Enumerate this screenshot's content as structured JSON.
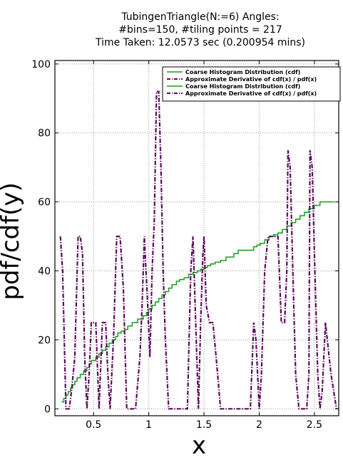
{
  "chart_data": {
    "type": "line",
    "title_lines": [
      "TubingenTriangle(N:=6) Angles:",
      "#bins=150, #tiling points = 217",
      "Time Taken: 12.0573 sec (0.200954 mins)"
    ],
    "xlabel": "x",
    "ylabel": "pdf/cdf(y)",
    "xlim": [
      0.15,
      2.72
    ],
    "ylim": [
      -2,
      101
    ],
    "x_ticks": [
      0.5,
      1,
      1.5,
      2,
      2.5
    ],
    "x_tick_labels": [
      "0.5",
      "1",
      "1.5",
      "2",
      "2.5"
    ],
    "y_ticks": [
      0,
      20,
      40,
      60,
      80,
      100
    ],
    "y_tick_labels": [
      "0",
      "20",
      "40",
      "60",
      "80",
      "100"
    ],
    "grid": true,
    "legend_position": "top-right",
    "legend": [
      "Coarse Histogram Distribution (cdf)",
      "Approximate Derivative of cdf(x) / pdf(x)",
      "Coarse Histogram Distribution (cdf)",
      "Approximate Derivative of cdf(x) / pdf(x)"
    ],
    "colors": {
      "cdf": "#1b9a1b",
      "pdf": "#5c0a5c",
      "grid": "#9a9a9a",
      "axis": "#000000"
    },
    "series": [
      {
        "name": "Coarse Histogram Distribution (cdf)",
        "style": "step",
        "x": [
          0.21,
          0.23,
          0.25,
          0.27,
          0.29,
          0.31,
          0.33,
          0.35,
          0.38,
          0.41,
          0.44,
          0.46,
          0.48,
          0.52,
          0.55,
          0.58,
          0.61,
          0.64,
          0.67,
          0.7,
          0.72,
          0.75,
          0.78,
          0.81,
          0.85,
          0.9,
          0.95,
          0.98,
          1.0,
          1.03,
          1.06,
          1.09,
          1.12,
          1.15,
          1.18,
          1.21,
          1.25,
          1.28,
          1.32,
          1.36,
          1.4,
          1.44,
          1.47,
          1.5,
          1.53,
          1.56,
          1.6,
          1.65,
          1.7,
          1.77,
          1.81,
          1.95,
          1.98,
          2.01,
          2.05,
          2.09,
          2.13,
          2.17,
          2.21,
          2.25,
          2.29,
          2.33,
          2.37,
          2.41,
          2.45,
          2.5,
          2.55,
          2.6,
          2.65,
          2.68
        ],
        "y": [
          2,
          3,
          4,
          5,
          6,
          7,
          8,
          9,
          10,
          11,
          12,
          13,
          14,
          15,
          16,
          17,
          18,
          19,
          20,
          21,
          22,
          22.5,
          23,
          24,
          25,
          26,
          27,
          28,
          29,
          30,
          31,
          32,
          33,
          34,
          35,
          36,
          37,
          37.5,
          38,
          39,
          39.5,
          40,
          40.5,
          41,
          41.5,
          42,
          42.5,
          43,
          44,
          45,
          46,
          47,
          47.5,
          48,
          49,
          50,
          50.5,
          51,
          52,
          53,
          54,
          55,
          56,
          57,
          58,
          59,
          60,
          60,
          60,
          60
        ]
      },
      {
        "name": "Approximate Derivative of cdf(x) / pdf(x)",
        "style": "dashdot",
        "x": [
          0.2,
          0.22,
          0.25,
          0.28,
          0.3,
          0.33,
          0.36,
          0.38,
          0.4,
          0.42,
          0.44,
          0.46,
          0.48,
          0.5,
          0.52,
          0.55,
          0.58,
          0.61,
          0.63,
          0.65,
          0.68,
          0.71,
          0.74,
          0.77,
          0.8,
          0.84,
          0.88,
          0.92,
          0.94,
          0.96,
          0.99,
          1.01,
          1.03,
          1.05,
          1.07,
          1.09,
          1.11,
          1.13,
          1.15,
          1.18,
          1.2,
          1.23,
          1.27,
          1.31,
          1.35,
          1.38,
          1.4,
          1.43,
          1.45,
          1.47,
          1.49,
          1.5,
          1.52,
          1.55,
          1.58,
          1.61,
          1.65,
          1.7,
          1.75,
          1.8,
          1.85,
          1.89,
          1.92,
          1.95,
          1.97,
          2.0,
          2.02,
          2.05,
          2.08,
          2.11,
          2.14,
          2.17,
          2.2,
          2.23,
          2.25,
          2.26,
          2.28,
          2.3,
          2.33,
          2.36,
          2.39,
          2.41,
          2.43,
          2.45,
          2.46,
          2.48,
          2.5,
          2.53,
          2.55,
          2.57,
          2.6,
          2.65,
          2.7
        ],
        "y": [
          50,
          40,
          0,
          0,
          5,
          15,
          50,
          50,
          45,
          15,
          0,
          10,
          25,
          25,
          25,
          0,
          25,
          25,
          10,
          0,
          20,
          50,
          50,
          35,
          0,
          0,
          0,
          15,
          30,
          50,
          30,
          15,
          40,
          55,
          92,
          92,
          70,
          40,
          20,
          0,
          0,
          0,
          0,
          0,
          0,
          40,
          50,
          20,
          0,
          25,
          45,
          50,
          30,
          25,
          25,
          15,
          0,
          0,
          0,
          0,
          0,
          0,
          0,
          25,
          20,
          0,
          10,
          40,
          50,
          50,
          50,
          50,
          25,
          25,
          40,
          75,
          70,
          45,
          10,
          0,
          0,
          0,
          0,
          10,
          75,
          70,
          45,
          10,
          0,
          5,
          25,
          10,
          0
        ]
      }
    ]
  }
}
